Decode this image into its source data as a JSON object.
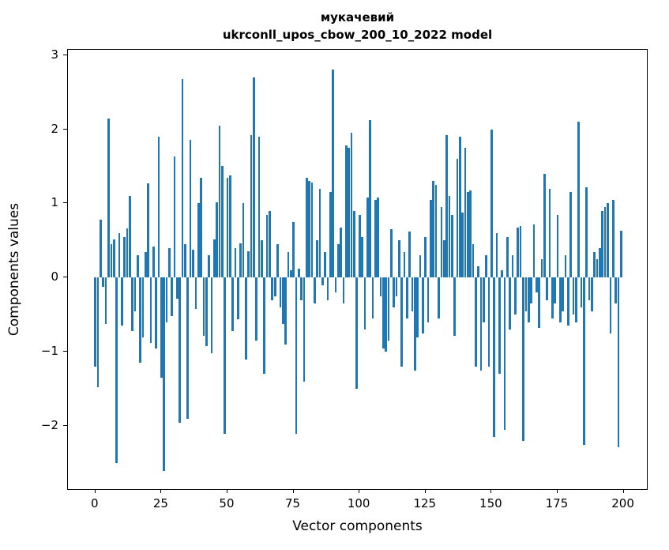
{
  "chart_data": {
    "type": "bar",
    "title": "мукачевий\nukrconll_upos_cbow_200_10_2022 model",
    "xlabel": "Vector components",
    "ylabel": "Components values",
    "color": "#1f77b4",
    "bar_width": 0.8,
    "xlim": [
      -10.4,
      209.4
    ],
    "ylim": [
      -2.87,
      3.07
    ],
    "xticks": {
      "values": [
        0,
        25,
        50,
        75,
        100,
        125,
        150,
        175,
        200
      ],
      "labels": [
        "0",
        "25",
        "50",
        "75",
        "100",
        "125",
        "150",
        "175",
        "200"
      ]
    },
    "yticks": {
      "values": [
        -2,
        -1,
        0,
        1,
        2,
        3
      ],
      "labels": [
        "−2",
        "−1",
        "0",
        "1",
        "2",
        "3"
      ]
    },
    "x_start": 0,
    "values": [
      -1.2,
      -1.48,
      0.78,
      -0.12,
      -0.62,
      2.14,
      0.45,
      0.52,
      -2.5,
      0.6,
      -0.65,
      0.55,
      0.66,
      1.1,
      -0.72,
      -0.45,
      0.3,
      -1.15,
      -0.8,
      0.35,
      1.27,
      -0.88,
      0.42,
      -0.95,
      1.9,
      -1.35,
      -2.6,
      -0.6,
      0.4,
      -0.52,
      1.63,
      -0.28,
      -1.95,
      2.68,
      0.45,
      -1.9,
      1.86,
      0.38,
      -0.42,
      1.0,
      1.35,
      -0.78,
      -0.92,
      0.3,
      -1.02,
      0.52,
      1.02,
      2.05,
      1.5,
      -2.1,
      1.35,
      1.38,
      -0.72,
      0.4,
      -0.56,
      0.46,
      1.0,
      -1.1,
      0.36,
      1.92,
      2.7,
      -0.85,
      1.9,
      0.5,
      -1.3,
      0.85,
      0.9,
      -0.3,
      -0.25,
      0.45,
      -0.4,
      -0.62,
      -0.9,
      0.35,
      0.1,
      0.75,
      -2.1,
      0.12,
      -0.3,
      -1.4,
      1.35,
      1.3,
      1.28,
      -0.35,
      0.5,
      1.2,
      -0.1,
      0.35,
      -0.3,
      1.15,
      2.8,
      -0.2,
      0.45,
      0.68,
      -0.35,
      1.78,
      1.75,
      1.95,
      0.9,
      -1.5,
      0.85,
      0.55,
      -0.7,
      1.08,
      2.12,
      -0.55,
      1.05,
      1.08,
      -0.25,
      -0.95,
      -1.0,
      -0.85,
      0.65,
      -0.4,
      -0.25,
      0.5,
      -1.2,
      0.35,
      -0.55,
      0.62,
      -0.45,
      -1.25,
      -0.8,
      0.3,
      -0.75,
      0.55,
      -0.6,
      1.05,
      1.3,
      1.25,
      -0.55,
      0.95,
      0.5,
      1.92,
      1.1,
      0.85,
      -0.78,
      1.6,
      1.9,
      0.88,
      1.75,
      1.15,
      1.18,
      0.45,
      -1.2,
      0.15,
      -1.25,
      -0.6,
      0.3,
      -1.2,
      2.0,
      -2.15,
      0.6,
      -1.3,
      0.1,
      -2.05,
      0.55,
      -0.7,
      0.3,
      -0.5,
      0.68,
      0.7,
      -2.2,
      -0.45,
      -0.6,
      -0.35,
      0.72,
      -0.2,
      -0.68,
      0.25,
      1.4,
      -0.3,
      1.2,
      -0.55,
      -0.35,
      0.85,
      -0.6,
      -0.45,
      0.3,
      -0.65,
      1.15,
      -0.5,
      -0.6,
      2.1,
      -0.4,
      -2.25,
      1.22,
      -0.3,
      -0.45,
      0.35,
      0.25,
      0.4,
      0.9,
      0.95,
      1.0,
      -0.75,
      1.05,
      -0.35,
      -2.28,
      0.63
    ]
  }
}
